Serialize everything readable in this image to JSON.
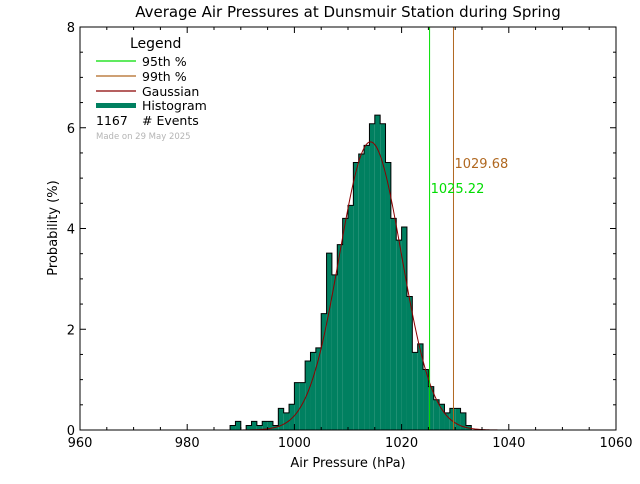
{
  "chart_data": {
    "type": "bar",
    "title": "Average Air Pressures at Dunsmuir Station during Spring",
    "xlabel": "Air Pressure (hPa)",
    "ylabel": "Probability (%)",
    "xlim": [
      960,
      1060
    ],
    "ylim": [
      0,
      8
    ],
    "xticks": [
      960,
      980,
      1000,
      1020,
      1040,
      1060
    ],
    "yticks": [
      0,
      2,
      4,
      6,
      8
    ],
    "bin_width": 1,
    "histogram": {
      "x": [
        988,
        989,
        990,
        991,
        992,
        993,
        994,
        995,
        996,
        997,
        998,
        999,
        1000,
        1001,
        1002,
        1003,
        1004,
        1005,
        1006,
        1007,
        1008,
        1009,
        1010,
        1011,
        1012,
        1013,
        1014,
        1015,
        1016,
        1017,
        1018,
        1019,
        1020,
        1021,
        1022,
        1023,
        1024,
        1025,
        1026,
        1027,
        1028,
        1029,
        1030,
        1031,
        1032
      ],
      "values": [
        0.09,
        0.17,
        0.0,
        0.09,
        0.17,
        0.09,
        0.17,
        0.17,
        0.09,
        0.43,
        0.34,
        0.51,
        0.94,
        0.94,
        1.37,
        1.54,
        1.63,
        2.31,
        3.51,
        3.08,
        3.68,
        4.2,
        4.46,
        5.31,
        5.48,
        5.65,
        6.08,
        6.25,
        6.08,
        5.31,
        4.2,
        3.77,
        4.03,
        2.65,
        1.54,
        1.71,
        1.2,
        0.86,
        0.6,
        0.51,
        0.34,
        0.43,
        0.43,
        0.34,
        0.09
      ],
      "color": "#008060"
    },
    "gaussian": {
      "mean": 1014.2,
      "sigma": 5.8,
      "peak": 5.72,
      "color": "#8b0000"
    },
    "percentile_95": {
      "value": 1025.22,
      "label": "1025.22",
      "color": "#00dd00"
    },
    "percentile_99": {
      "value": 1029.68,
      "label": "1029.68",
      "color": "#b06820"
    },
    "legend": {
      "title": "Legend",
      "p95": "95th %",
      "p99": "99th %",
      "gaussian": "Gaussian",
      "histogram": "Histogram",
      "events_count": "1167",
      "events_label": "# Events",
      "made_on": "Made on 29 May 2025"
    }
  }
}
